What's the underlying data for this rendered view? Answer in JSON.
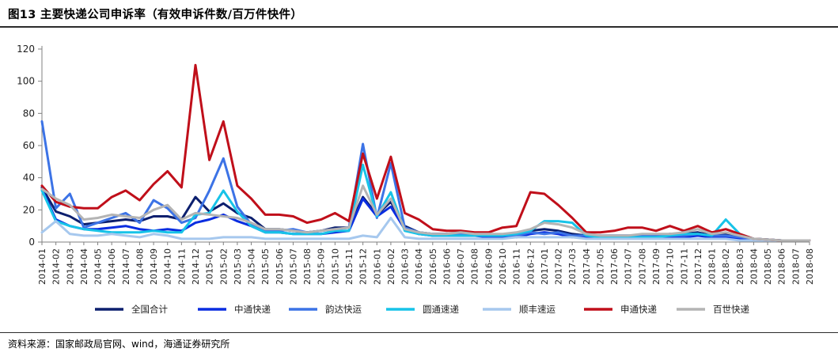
{
  "header": {
    "title": "图13 主要快递公司申诉率（有效申诉件数/百万件快件）"
  },
  "footer": {
    "source": "资料来源：国家邮政局官网、wind，海通证券研究所"
  },
  "chart_data": {
    "type": "line",
    "ylim": [
      0,
      120
    ],
    "yticks": [
      0,
      20,
      40,
      60,
      80,
      100,
      120
    ],
    "legend_position": "bottom",
    "categories": [
      "2014-01",
      "2014-02",
      "2014-03",
      "2014-04",
      "2014-05",
      "2014-06",
      "2014-07",
      "2014-08",
      "2014-09",
      "2014-10",
      "2014-11",
      "2014-12",
      "2015-01",
      "2015-02",
      "2015-03",
      "2015-04",
      "2015-05",
      "2015-06",
      "2015-07",
      "2015-08",
      "2015-09",
      "2015-10",
      "2015-11",
      "2015-12",
      "2016-01",
      "2016-02",
      "2016-03",
      "2016-04",
      "2016-05",
      "2016-06",
      "2016-07",
      "2016-08",
      "2016-09",
      "2016-10",
      "2016-11",
      "2016-12",
      "2017-01",
      "2017-02",
      "2017-03",
      "2017-04",
      "2017-05",
      "2017-06",
      "2017-07",
      "2017-08",
      "2017-09",
      "2017-10",
      "2017-11",
      "2017-12",
      "2018-01",
      "2018-02",
      "2018-03",
      "2018-04",
      "2018-05",
      "2018-06",
      "2018-07",
      "2018-08"
    ],
    "series": [
      {
        "name": "全国合计",
        "color": "#0c1f6e",
        "values": [
          34,
          19,
          16,
          11,
          12,
          13,
          14,
          13,
          16,
          16,
          14,
          28,
          19,
          24,
          18,
          15,
          8,
          8,
          7,
          6,
          7,
          9,
          9,
          28,
          17,
          25,
          10,
          6,
          5,
          5,
          5,
          5,
          4,
          4,
          5,
          7,
          8,
          7,
          5,
          4,
          4,
          4,
          4,
          4,
          4,
          5,
          5,
          6,
          4,
          5,
          3,
          2,
          1.5,
          1,
          1,
          1
        ]
      },
      {
        "name": "中通快递",
        "color": "#0a2de0",
        "values": [
          33,
          14,
          10,
          8,
          8,
          9,
          10,
          8,
          7,
          8,
          7,
          12,
          14,
          17,
          13,
          10,
          6,
          6,
          5,
          5,
          5,
          6,
          7,
          27,
          16,
          22,
          8,
          5,
          4,
          4,
          4,
          4,
          3,
          3,
          3,
          5,
          6,
          5,
          3,
          3,
          3,
          3,
          3,
          3,
          3,
          3,
          3,
          4,
          3,
          3,
          2,
          1.5,
          1,
          1,
          1,
          1
        ]
      },
      {
        "name": "韵达快运",
        "color": "#3c73e6",
        "values": [
          75,
          21,
          30,
          9,
          12,
          15,
          18,
          12,
          26,
          21,
          12,
          15,
          32,
          52,
          22,
          11,
          7,
          7,
          8,
          6,
          7,
          8,
          9,
          61,
          15,
          49,
          9,
          6,
          5,
          5,
          5,
          5,
          4,
          4,
          4,
          6,
          5,
          6,
          4,
          4,
          4,
          4,
          4,
          4,
          4,
          4,
          4,
          5,
          4,
          4,
          3,
          2,
          1.5,
          1,
          1,
          1
        ]
      },
      {
        "name": "圆通速递",
        "color": "#17c3e8",
        "values": [
          32,
          13,
          10,
          8,
          7,
          6,
          6,
          6,
          7,
          6,
          6,
          17,
          18,
          32,
          19,
          10,
          6,
          6,
          5,
          5,
          5,
          7,
          7,
          48,
          16,
          31,
          7,
          5,
          4,
          4,
          4,
          4,
          4,
          4,
          5,
          7,
          13,
          13,
          12,
          4,
          3,
          3,
          3,
          3,
          3,
          4,
          5,
          5,
          4,
          14,
          5,
          2,
          1.5,
          1,
          1,
          1
        ]
      },
      {
        "name": "顺丰速运",
        "color": "#a6c8ee",
        "values": [
          6,
          13,
          5,
          4,
          4,
          5,
          4,
          3,
          5,
          4,
          2,
          2,
          2,
          3,
          3,
          3,
          2,
          2,
          2,
          2,
          2,
          2,
          2,
          4,
          3,
          15,
          3,
          2,
          2,
          2,
          2,
          2,
          2,
          2,
          3,
          3,
          3,
          3,
          3,
          2,
          2,
          2,
          2,
          2,
          2,
          2,
          2,
          2,
          2,
          2,
          1,
          1,
          1,
          1,
          1,
          1
        ]
      },
      {
        "name": "申通快递",
        "color": "#c00f1a",
        "values": [
          35,
          25,
          22,
          21,
          21,
          28,
          32,
          26,
          36,
          44,
          34,
          110,
          51,
          75,
          35,
          27,
          17,
          17,
          16,
          12,
          14,
          18,
          13,
          55,
          27,
          53,
          18,
          14,
          8,
          7,
          7,
          6,
          6,
          9,
          10,
          31,
          30,
          23,
          15,
          6,
          6,
          7,
          9,
          9,
          7,
          10,
          7,
          10,
          6,
          8,
          5,
          2,
          1.5,
          1,
          1,
          1
        ]
      },
      {
        "name": "百世快递",
        "color": "#b4b4b4",
        "values": [
          33,
          27,
          23,
          14,
          15,
          17,
          16,
          15,
          20,
          23,
          14,
          18,
          17,
          16,
          15,
          12,
          8,
          8,
          7,
          6,
          7,
          8,
          9,
          35,
          17,
          27,
          8,
          6,
          5,
          5,
          6,
          5,
          5,
          5,
          6,
          8,
          12,
          11,
          9,
          5,
          4,
          4,
          4,
          5,
          5,
          5,
          6,
          8,
          5,
          6,
          4,
          2,
          1.5,
          1,
          1,
          1
        ]
      }
    ]
  }
}
